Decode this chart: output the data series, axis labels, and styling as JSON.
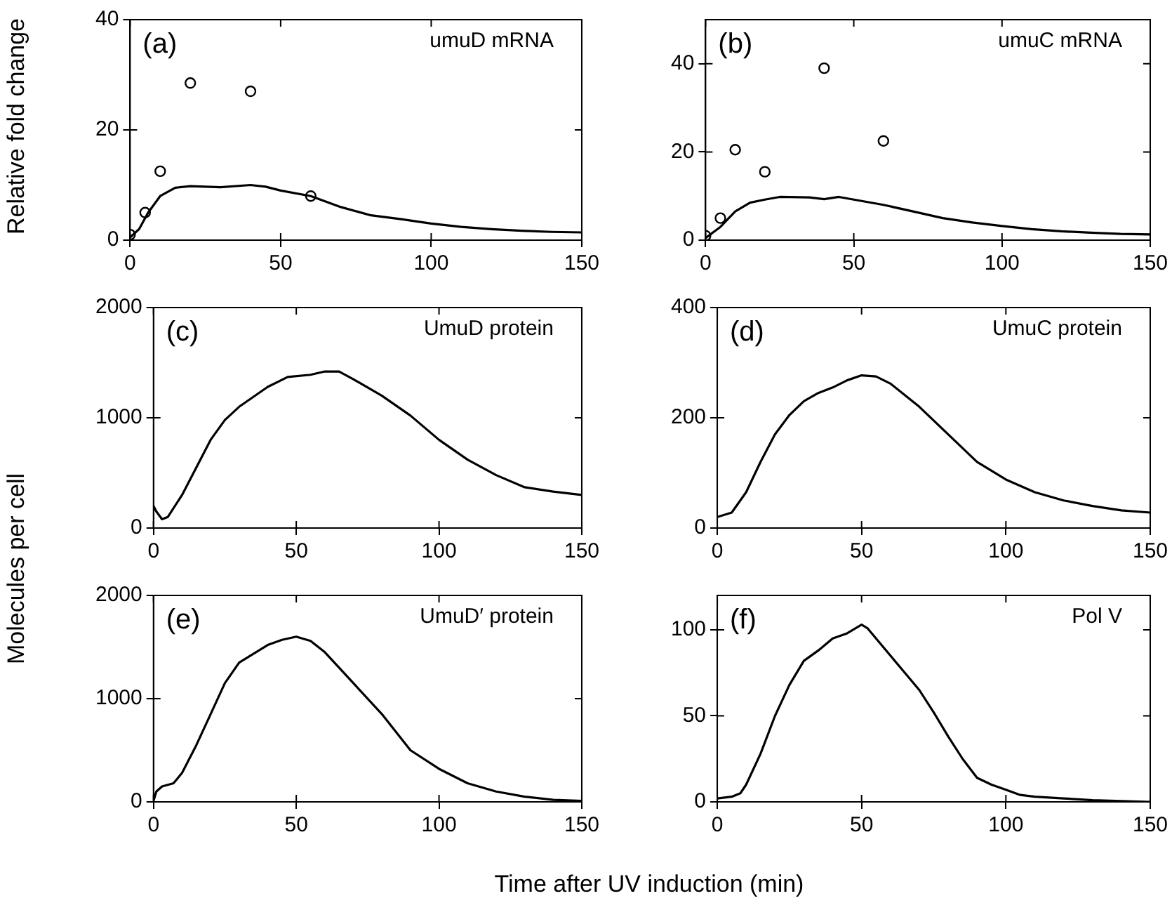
{
  "chart_data": [
    {
      "type": "line",
      "ylabel": "Relative fold change",
      "annotations": [
        "(a)",
        "umuD mRNA"
      ],
      "xlim": [
        0,
        150
      ],
      "xticks": [
        0,
        50,
        100,
        150
      ],
      "ylim": [
        0,
        40
      ],
      "yticks": [
        0,
        20,
        40
      ],
      "grid": false,
      "legend": false,
      "series": [
        {
          "type": "scatter",
          "marker": "circle",
          "color": "#000000",
          "x": [
            0,
            5,
            10,
            20,
            40,
            60
          ],
          "values": [
            1,
            5,
            12.5,
            28.5,
            27,
            8
          ]
        },
        {
          "type": "line",
          "color": "#000000",
          "x": [
            0,
            3,
            6,
            10,
            15,
            20,
            30,
            40,
            45,
            50,
            60,
            70,
            80,
            90,
            100,
            110,
            120,
            130,
            140,
            150
          ],
          "values": [
            0.5,
            2,
            5,
            8,
            9.5,
            9.8,
            9.6,
            10,
            9.7,
            9,
            8,
            6,
            4.5,
            3.8,
            3,
            2.4,
            2,
            1.7,
            1.5,
            1.4
          ]
        }
      ]
    },
    {
      "type": "line",
      "annotations": [
        "(b)",
        "umuC mRNA"
      ],
      "xlim": [
        0,
        150
      ],
      "xticks": [
        0,
        50,
        100,
        150
      ],
      "ylim": [
        0,
        50
      ],
      "yticks": [
        0,
        20,
        40
      ],
      "grid": false,
      "legend": false,
      "series": [
        {
          "type": "scatter",
          "marker": "circle",
          "color": "#000000",
          "x": [
            0,
            5,
            10,
            20,
            40,
            60
          ],
          "values": [
            1,
            5,
            20.5,
            15.5,
            39,
            22.5
          ]
        },
        {
          "type": "line",
          "color": "#000000",
          "x": [
            0,
            5,
            10,
            15,
            20,
            25,
            35,
            40,
            45,
            50,
            60,
            70,
            80,
            90,
            100,
            110,
            120,
            130,
            140,
            150
          ],
          "values": [
            0.5,
            3,
            6.5,
            8.5,
            9.2,
            9.8,
            9.7,
            9.3,
            9.8,
            9.2,
            8,
            6.5,
            5,
            4,
            3.2,
            2.5,
            2,
            1.7,
            1.4,
            1.3
          ]
        }
      ]
    },
    {
      "type": "line",
      "ylabel": "Molecules per cell",
      "annotations": [
        "(c)",
        "UmuD protein"
      ],
      "xlim": [
        0,
        150
      ],
      "xticks": [
        0,
        50,
        100,
        150
      ],
      "ylim": [
        0,
        2000
      ],
      "yticks": [
        0,
        1000,
        2000
      ],
      "grid": false,
      "legend": false,
      "series": [
        {
          "type": "line",
          "color": "#000000",
          "x": [
            0,
            1,
            3,
            5,
            10,
            15,
            20,
            25,
            30,
            40,
            47,
            55,
            60,
            65,
            70,
            80,
            90,
            100,
            110,
            120,
            130,
            140,
            150
          ],
          "values": [
            200,
            150,
            80,
            100,
            300,
            550,
            800,
            980,
            1100,
            1280,
            1370,
            1390,
            1420,
            1420,
            1350,
            1200,
            1020,
            800,
            620,
            480,
            370,
            330,
            300
          ]
        }
      ]
    },
    {
      "type": "line",
      "annotations": [
        "(d)",
        "UmuC protein"
      ],
      "xlim": [
        0,
        150
      ],
      "xticks": [
        0,
        50,
        100,
        150
      ],
      "ylim": [
        0,
        400
      ],
      "yticks": [
        0,
        200,
        400
      ],
      "grid": false,
      "legend": false,
      "series": [
        {
          "type": "line",
          "color": "#000000",
          "x": [
            0,
            5,
            10,
            15,
            20,
            25,
            30,
            35,
            40,
            45,
            50,
            55,
            60,
            70,
            80,
            90,
            100,
            110,
            120,
            130,
            140,
            150
          ],
          "values": [
            20,
            28,
            65,
            120,
            170,
            205,
            230,
            245,
            255,
            268,
            277,
            275,
            262,
            220,
            170,
            120,
            88,
            65,
            50,
            40,
            32,
            28
          ]
        }
      ]
    },
    {
      "type": "line",
      "xlabel": "Time after UV induction (min)",
      "annotations": [
        "(e)",
        "UmuD′ protein"
      ],
      "xlim": [
        0,
        150
      ],
      "xticks": [
        0,
        50,
        100,
        150
      ],
      "ylim": [
        0,
        2000
      ],
      "yticks": [
        0,
        1000,
        2000
      ],
      "grid": false,
      "legend": false,
      "series": [
        {
          "type": "line",
          "color": "#000000",
          "x": [
            0,
            1,
            3,
            7,
            10,
            15,
            20,
            25,
            30,
            40,
            45,
            50,
            55,
            60,
            70,
            80,
            90,
            100,
            110,
            120,
            130,
            140,
            150
          ],
          "values": [
            10,
            100,
            150,
            180,
            280,
            550,
            850,
            1150,
            1350,
            1520,
            1570,
            1600,
            1560,
            1450,
            1150,
            850,
            500,
            320,
            180,
            100,
            50,
            20,
            10
          ]
        }
      ]
    },
    {
      "type": "line",
      "annotations": [
        "(f)",
        "Pol V"
      ],
      "xlim": [
        0,
        150
      ],
      "xticks": [
        0,
        50,
        100,
        150
      ],
      "ylim": [
        0,
        120
      ],
      "yticks": [
        0,
        50,
        100
      ],
      "grid": false,
      "legend": false,
      "series": [
        {
          "type": "line",
          "color": "#000000",
          "x": [
            0,
            5,
            8,
            10,
            15,
            20,
            25,
            30,
            35,
            40,
            45,
            50,
            52,
            55,
            60,
            65,
            70,
            75,
            80,
            85,
            90,
            95,
            100,
            105,
            110,
            120,
            130,
            150
          ],
          "values": [
            2,
            3,
            5,
            10,
            28,
            50,
            68,
            82,
            88,
            95,
            98,
            103,
            101,
            95,
            85,
            75,
            65,
            52,
            38,
            25,
            14,
            10,
            7,
            4,
            3,
            2,
            1,
            0
          ]
        }
      ]
    }
  ]
}
